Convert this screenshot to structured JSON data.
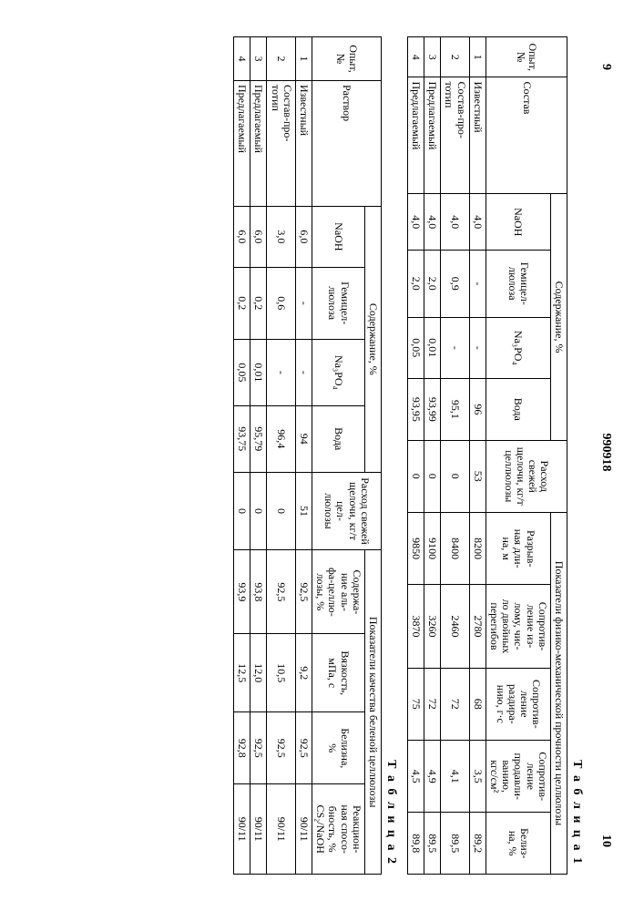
{
  "doc_number": "990918",
  "page_left": "9",
  "page_right": "10",
  "table1": {
    "caption": "Т а б л и ц а 1",
    "head": {
      "opyt": "Опыт,\n№",
      "sostav": "Состав",
      "soderzh": "Содержание, %",
      "rashod": "Расход свежей щелочи, кг/т целлюлозы",
      "pokaz": "Показатели физико-механической прочности целлюлозы",
      "naoh": "NaOH",
      "gemi": "Гемицел-\nлюлоза",
      "na3po4": "Na₃PO₄",
      "voda": "Вода",
      "razryv": "Разрыв-\nная дли-\nна, м",
      "izlom": "Сопротив-\nление из-\nлому, чис-\nло двойных\nперегибов",
      "razdir": "Сопротив-\nление\nраздира-\nнию, г·с",
      "prodav": "Сопротив-\nление\nпродавли-\nванию,\nкгс/см²",
      "beliz": "Белиз-\nна, %"
    },
    "rows": [
      {
        "n": "1",
        "s": "Известный",
        "naoh": "4,0",
        "gemi": "-",
        "na3": "-",
        "voda": "96",
        "rash": "53",
        "raz": "8200",
        "izl": "2780",
        "rzd": "68",
        "prd": "3,5",
        "bel": "89,2"
      },
      {
        "n": "2",
        "s": "Состав-про-\nтотип",
        "naoh": "4,0",
        "gemi": "0,9",
        "na3": "-",
        "voda": "95,1",
        "rash": "0",
        "raz": "8400",
        "izl": "2460",
        "rzd": "72",
        "prd": "4,1",
        "bel": "89,5"
      },
      {
        "n": "3",
        "s": "Предлагаемый",
        "naoh": "4,0",
        "gemi": "2,0",
        "na3": "0,01",
        "voda": "93,99",
        "rash": "0",
        "raz": "9100",
        "izl": "3260",
        "rzd": "72",
        "prd": "4,9",
        "bel": "89,5"
      },
      {
        "n": "4",
        "s": "Предлагаемый",
        "naoh": "4,0",
        "gemi": "2,0",
        "na3": "0,05",
        "voda": "93,95",
        "rash": "0",
        "raz": "9850",
        "izl": "3870",
        "rzd": "75",
        "prd": "4,5",
        "bel": "89,8"
      }
    ]
  },
  "table2": {
    "caption": "Т а б л и ц а 2",
    "head": {
      "opyt": "Опыт,\n№",
      "rastvor": "Раствор",
      "soderzh": "Содержание, %",
      "rashod": "Расход свежей щелочи, кг/т цел-\nлюлозы",
      "pokaz": "Показатели качества беленой целлюлозы",
      "naoh": "NaOH",
      "gemi": "Гемицел-\nлюлоза",
      "na3po4": "Na₃PO₄",
      "voda": "Вода",
      "alfa": "Содержа-\nние аль-\nфа-целлю-\nлозы, %",
      "vyaz": "Вязкость,\nмПа, с",
      "beliz": "Белизна,\n%",
      "reak": "Реакцион-\nная спосо-\nбность, %\nCS₂/NaOH"
    },
    "rows": [
      {
        "n": "1",
        "s": "Известный",
        "naoh": "6,0",
        "gemi": "-",
        "na3": "-",
        "voda": "94",
        "rash": "51",
        "alfa": "92,5",
        "vyaz": "9,2",
        "bel": "92,5",
        "reak": "90/11"
      },
      {
        "n": "2",
        "s": "Состав-про-\nтотип",
        "naoh": "3,0",
        "gemi": "0,6",
        "na3": "-",
        "voda": "96,4",
        "rash": "0",
        "alfa": "92,5",
        "vyaz": "10,5",
        "bel": "92,5",
        "reak": "90/11"
      },
      {
        "n": "3",
        "s": "Предлагаемый",
        "naoh": "6,0",
        "gemi": "0,2",
        "na3": "0,01",
        "voda": "95,79",
        "rash": "0",
        "alfa": "93,8",
        "vyaz": "12,0",
        "bel": "92,5",
        "reak": "90/11"
      },
      {
        "n": "4",
        "s": "Предлагаемый",
        "naoh": "6,0",
        "gemi": "0,2",
        "na3": "0,05",
        "voda": "93,75",
        "rash": "0",
        "alfa": "93,9",
        "vyaz": "12,5",
        "bel": "92,8",
        "reak": "90/11"
      }
    ]
  }
}
